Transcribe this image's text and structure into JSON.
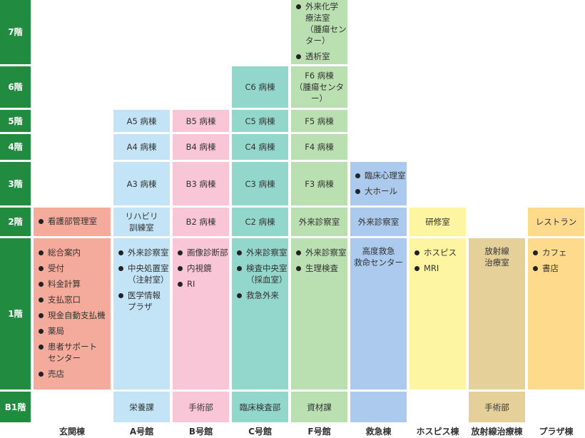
{
  "floors": [
    "7階",
    "6階",
    "5階",
    "4階",
    "3階",
    "2階",
    "1階",
    "B1階"
  ],
  "buildings": [
    {
      "name": "玄関棟",
      "color": "#f4ab9b",
      "floors": [
        null,
        null,
        null,
        null,
        null,
        [
          "看護部管理室"
        ],
        [
          "総合案内",
          "受付",
          "料金計算",
          "支払窓口",
          "現金自動支払機",
          "薬局",
          "患者サポート\nセンター",
          "売店"
        ],
        null
      ]
    },
    {
      "name": "A号館",
      "color": "#c2e4f6",
      "floors": [
        null,
        null,
        "A5 病棟",
        "A4 病棟",
        "A3 病棟",
        "リハビリ\n訓練室",
        [
          "外来診察室",
          "中央処置室\n（注射室）",
          "医学情報\nプラザ"
        ],
        "栄養課"
      ]
    },
    {
      "name": "B号館",
      "color": "#f8c6d6",
      "floors": [
        null,
        null,
        "B5 病棟",
        "B4 病棟",
        "B3 病棟",
        "B2 病棟",
        [
          "画像診断部",
          "内視鏡",
          "RI"
        ],
        "手術部"
      ]
    },
    {
      "name": "C号館",
      "color": "#93d6cb",
      "floors": [
        null,
        "C6 病棟",
        "C5 病棟",
        "C4 病棟",
        "C3 病棟",
        "C2 病棟",
        [
          "外来診察室",
          "検査中央室\n（採血室）",
          "救急外来"
        ],
        "臨床検査部"
      ]
    },
    {
      "name": "F号館",
      "color": "#badfb1",
      "floors": [
        [
          "外来化学\n療法室\n（腫瘍センター）",
          "透析室"
        ],
        "F6 病棟\n（腫瘍センター）",
        "F5 病棟",
        "F4 病棟",
        "F3 病棟",
        "外来診察室",
        [
          "外来診察室",
          "生理検査"
        ],
        "資材課"
      ]
    },
    {
      "name": "救急棟",
      "color": "#abcaed",
      "floors": [
        null,
        null,
        null,
        null,
        [
          "臨床心理室",
          "大ホール"
        ],
        "外来診察室",
        "高度救急\n救命センター",
        []
      ]
    },
    {
      "name": "ホスピス棟",
      "color": "#fdf5a2",
      "floors": [
        null,
        null,
        null,
        null,
        null,
        "研修室",
        [
          "ホスピス",
          "MRI"
        ],
        null
      ]
    },
    {
      "name": "放射線治療棟",
      "color": "#e6d09a",
      "floors": [
        null,
        null,
        null,
        null,
        null,
        null,
        "放射線\n治療室",
        "手術部"
      ]
    },
    {
      "name": "プラザ棟",
      "color": "#fdda8c",
      "floors": [
        null,
        null,
        null,
        null,
        null,
        "レストラン",
        [
          "カフェ",
          "書店"
        ],
        null
      ]
    }
  ]
}
